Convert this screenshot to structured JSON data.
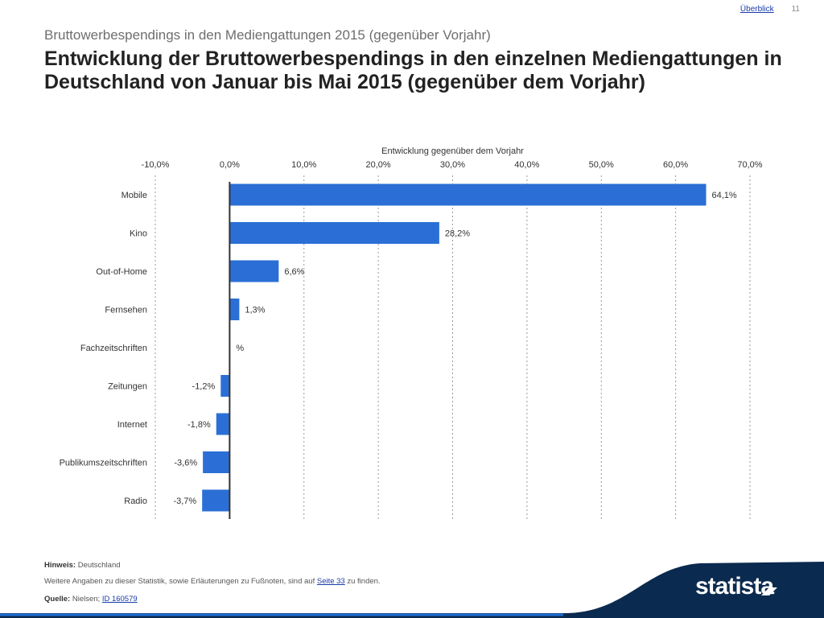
{
  "nav": {
    "overview_link": "Überblick",
    "page_number": "11"
  },
  "header": {
    "subtitle": "Bruttowerbespendings in den Mediengattungen 2015 (gegenüber Vorjahr)",
    "title": "Entwicklung der Bruttowerbespendings in den einzelnen Mediengattungen in Deutschland von Januar bis Mai 2015 (gegenüber dem Vorjahr)"
  },
  "chart_data": {
    "type": "bar",
    "orientation": "horizontal",
    "axis_title": "Entwicklung gegenüber dem Vorjahr",
    "xlim": [
      -10,
      70
    ],
    "ticks": [
      -10,
      0,
      10,
      20,
      30,
      40,
      50,
      60,
      70
    ],
    "tick_labels": [
      "-10,0%",
      "0,0%",
      "10,0%",
      "20,0%",
      "30,0%",
      "40,0%",
      "50,0%",
      "60,0%",
      "70,0%"
    ],
    "categories": [
      "Mobile",
      "Kino",
      "Out-of-Home",
      "Fernsehen",
      "Fachzeitschriften",
      "Zeitungen",
      "Internet",
      "Publikumszeitschriften",
      "Radio"
    ],
    "values": [
      64.1,
      28.2,
      6.6,
      1.3,
      0,
      -1.2,
      -1.8,
      -3.6,
      -3.7
    ],
    "value_labels": [
      "64,1%",
      "28,2%",
      "6,6%",
      "1,3%",
      "%",
      "-1,2%",
      "-1,8%",
      "-3,6%",
      "-3,7%"
    ],
    "bar_color": "#2b6fd6",
    "axis_color": "#333333",
    "grid": "dotted vertical",
    "legend": "none"
  },
  "footer": {
    "note_label": "Hinweis:",
    "note_value": "Deutschland",
    "info_text_before": "Weitere Angaben zu dieser Statistik, sowie Erläuterungen zu Fußnoten, sind auf",
    "info_link": "Seite 33",
    "info_text_after": "zu finden.",
    "source_label": "Quelle:",
    "source_value": "Nielsen;",
    "source_link": "ID 160579"
  },
  "brand": {
    "logo": "statista",
    "color": "#0b2a4f"
  }
}
